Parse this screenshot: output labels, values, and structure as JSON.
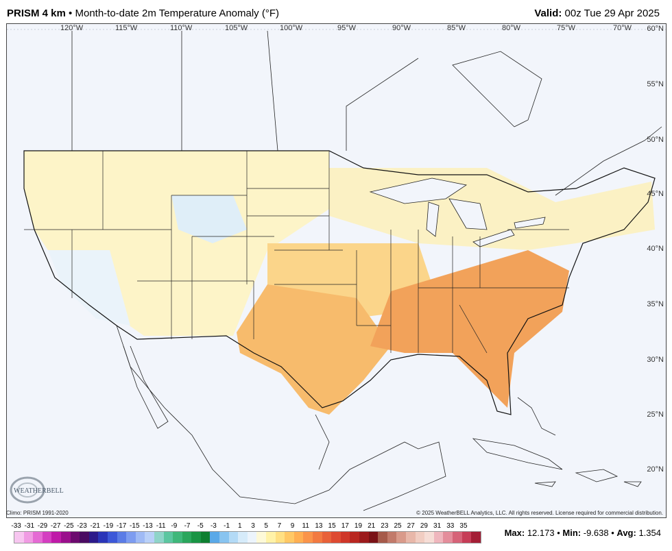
{
  "header": {
    "product": "PRISM 4 km",
    "bullet": "•",
    "title": "Month-to-date 2m Temperature Anomaly (°F)",
    "valid_label": "Valid:",
    "valid_value": "00z Tue 29 Apr 2025"
  },
  "map": {
    "longitude_labels": [
      "120°W",
      "115°W",
      "110°W",
      "105°W",
      "100°W",
      "95°W",
      "90°W",
      "85°W",
      "80°W",
      "75°W",
      "70°W"
    ],
    "latitude_labels": [
      "60°N",
      "55°N",
      "50°N",
      "45°N",
      "40°N",
      "35°N",
      "30°N",
      "25°N",
      "20°N"
    ]
  },
  "logo_text": "WEATHERBELL",
  "footer": {
    "climo": "Climo: PRISM 1991-2020",
    "copyright": "© 2025 WeatherBELL Analytics, LLC. All rights reserved. License required for commercial distribution."
  },
  "legend": {
    "labels": [
      "-33",
      "-31",
      "-29",
      "-27",
      "-25",
      "-23",
      "-21",
      "-19",
      "-17",
      "-15",
      "-13",
      "-11",
      "-9",
      "-7",
      "-5",
      "-3",
      "-1",
      "1",
      "3",
      "5",
      "7",
      "9",
      "11",
      "13",
      "15",
      "17",
      "19",
      "21",
      "23",
      "25",
      "27",
      "29",
      "31",
      "33",
      "35"
    ],
    "colors": [
      "#f7c6f0",
      "#f09be3",
      "#e56ad4",
      "#d43ec1",
      "#bf1aa8",
      "#9a0f8c",
      "#6c0a6e",
      "#4a0b62",
      "#2c1a8a",
      "#2a35b8",
      "#3d58d8",
      "#5b7ce6",
      "#7d9cf0",
      "#9fbaf5",
      "#b9d0f8",
      "#8fd4c9",
      "#5cc6a0",
      "#3fb77a",
      "#2aa65c",
      "#199444",
      "#0e7f30",
      "#5aa9e8",
      "#88c4f0",
      "#b3daf6",
      "#d6ebfa",
      "#ecf4fc",
      "#fdf9d8",
      "#fff2a8",
      "#ffe083",
      "#ffc865",
      "#ffaf52",
      "#fa944a",
      "#f27a41",
      "#e86139",
      "#de4a31",
      "#cf3628",
      "#b92620",
      "#9c1a1c",
      "#7a1216",
      "#a65a4a",
      "#c27a6a",
      "#d99a8a",
      "#e8b7a9",
      "#f1cdc2",
      "#f6ddd6",
      "#efb6bd",
      "#e48d9b",
      "#d66378",
      "#c63d57",
      "#a41e36"
    ]
  },
  "stats": {
    "max_label": "Max:",
    "max_value": "12.173",
    "min_label": "Min:",
    "min_value": "-9.638",
    "avg_label": "Avg:",
    "avg_value": "1.354",
    "sep": "•"
  }
}
